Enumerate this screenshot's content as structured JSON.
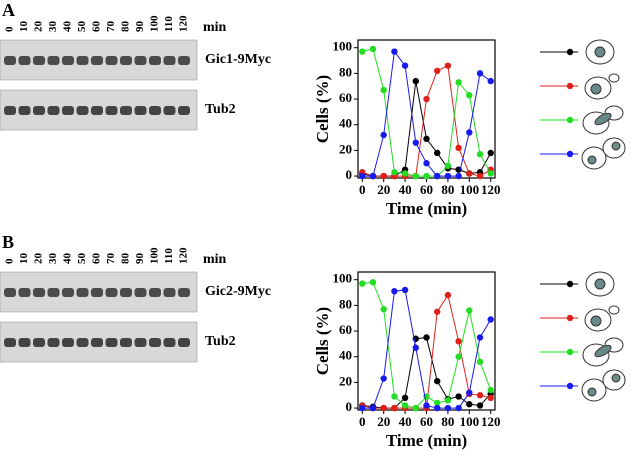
{
  "panels": [
    {
      "label": "A",
      "lanes": [
        "0",
        "10",
        "20",
        "30",
        "40",
        "50",
        "60",
        "70",
        "80",
        "90",
        "100",
        "110",
        "120"
      ],
      "unit": "min",
      "blots": [
        "Gic1-9Myc",
        "Tub2"
      ]
    },
    {
      "label": "B",
      "lanes": [
        "0",
        "10",
        "20",
        "30",
        "40",
        "50",
        "60",
        "70",
        "80",
        "90",
        "100",
        "110",
        "120"
      ],
      "unit": "min",
      "blots": [
        "Gic2-9Myc",
        "Tub2"
      ]
    }
  ],
  "chart_data": [
    {
      "type": "line",
      "x_label": "Time (min)",
      "y_label": "Cells (%)",
      "x": [
        0,
        10,
        20,
        30,
        40,
        50,
        60,
        70,
        80,
        90,
        100,
        110,
        120
      ],
      "xlim": [
        -4,
        124
      ],
      "xticks": [
        0,
        20,
        40,
        60,
        80,
        100,
        120
      ],
      "ylim": [
        -1.5,
        106
      ],
      "yticks": [
        0,
        20,
        40,
        60,
        80,
        100
      ],
      "series": [
        {
          "color": "#000000",
          "values": [
            2,
            0,
            0,
            0,
            5,
            74,
            29,
            18,
            6,
            5,
            2,
            3,
            18
          ]
        },
        {
          "color": "#e0201b",
          "values": [
            3,
            0,
            0,
            0,
            0,
            0,
            60,
            82,
            86,
            22,
            2,
            0,
            5
          ]
        },
        {
          "color": "#22dd22",
          "values": [
            97,
            99,
            67,
            3,
            2,
            0,
            0,
            0,
            8,
            73,
            63,
            17,
            2
          ]
        },
        {
          "color": "#1a1aee",
          "values": [
            0,
            0,
            32,
            97,
            86,
            26,
            10,
            0,
            0,
            0,
            34,
            80,
            74
          ]
        }
      ]
    },
    {
      "type": "line",
      "x_label": "Time (min)",
      "y_label": "Cells (%)",
      "x": [
        0,
        10,
        20,
        30,
        40,
        50,
        60,
        70,
        80,
        90,
        100,
        110,
        120
      ],
      "xlim": [
        -4,
        124
      ],
      "xticks": [
        0,
        20,
        40,
        60,
        80,
        100,
        120
      ],
      "ylim": [
        -1.5,
        106
      ],
      "yticks": [
        0,
        20,
        40,
        60,
        80,
        100
      ],
      "series": [
        {
          "color": "#000000",
          "values": [
            2,
            1,
            0,
            0,
            8,
            54,
            55,
            21,
            7,
            9,
            3,
            2,
            11
          ]
        },
        {
          "color": "#e0201b",
          "values": [
            2,
            0,
            0,
            0,
            0,
            0,
            0,
            75,
            88,
            52,
            11,
            10,
            8
          ]
        },
        {
          "color": "#22dd22",
          "values": [
            97,
            98,
            77,
            9,
            2,
            0,
            9,
            4,
            6,
            40,
            76,
            36,
            14
          ]
        },
        {
          "color": "#1a1aee",
          "values": [
            0,
            0,
            23,
            91,
            92,
            47,
            2,
            0,
            0,
            0,
            12,
            55,
            69
          ]
        }
      ]
    }
  ]
}
